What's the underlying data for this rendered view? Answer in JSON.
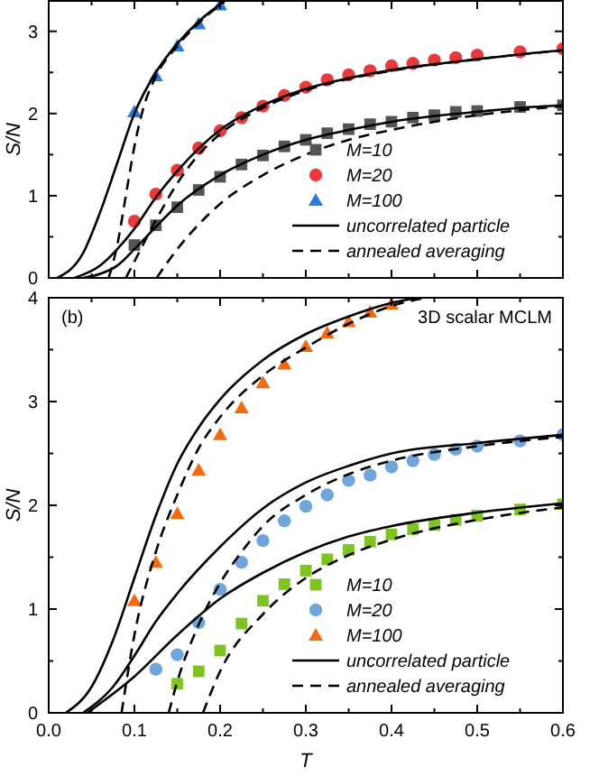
{
  "chart_data": [
    {
      "type": "scatter",
      "ylabel": "S/N",
      "xlim": [
        0,
        0.6
      ],
      "ylim": [
        0,
        3.37
      ],
      "tick_labels": "y",
      "legend": "bottom right",
      "xticks": [
        {
          "value": 0,
          "label": null
        },
        {
          "value": 0.05,
          "label": null
        },
        {
          "value": 0.1,
          "label": null
        },
        {
          "value": 0.15,
          "label": null
        },
        {
          "value": 0.2,
          "label": null
        },
        {
          "value": 0.25,
          "label": null
        },
        {
          "value": 0.3,
          "label": null
        },
        {
          "value": 0.35,
          "label": null
        },
        {
          "value": 0.4,
          "label": null
        },
        {
          "value": 0.45,
          "label": null
        },
        {
          "value": 0.5,
          "label": null
        },
        {
          "value": 0.55,
          "label": null
        },
        {
          "value": 0.6,
          "label": null
        }
      ],
      "yticks": [
        0,
        {
          "value": 0.5,
          "label": null
        },
        1,
        {
          "value": 1.5,
          "label": null
        },
        2,
        {
          "value": 2.5,
          "label": null
        },
        3
      ],
      "series": [
        {
          "name": "M=10",
          "type": "scatter",
          "marker": "square",
          "color": "#555555",
          "x": [
            0.1,
            0.125,
            0.15,
            0.175,
            0.2,
            0.225,
            0.25,
            0.275,
            0.3,
            0.325,
            0.35,
            0.375,
            0.4,
            0.425,
            0.45,
            0.475,
            0.5,
            0.55,
            0.6
          ],
          "values": [
            0.4,
            0.64,
            0.86,
            1.07,
            1.23,
            1.38,
            1.49,
            1.6,
            1.68,
            1.76,
            1.81,
            1.87,
            1.9,
            1.95,
            1.98,
            2.02,
            2.03,
            2.08,
            2.1
          ]
        },
        {
          "name": "M=20",
          "type": "scatter",
          "marker": "circle",
          "color": "#e8393c",
          "x": [
            0.1,
            0.125,
            0.15,
            0.175,
            0.2,
            0.225,
            0.25,
            0.275,
            0.3,
            0.325,
            0.35,
            0.375,
            0.4,
            0.425,
            0.45,
            0.475,
            0.5,
            0.55,
            0.6
          ],
          "values": [
            0.69,
            1.02,
            1.31,
            1.58,
            1.79,
            1.95,
            2.09,
            2.22,
            2.32,
            2.41,
            2.47,
            2.52,
            2.58,
            2.61,
            2.65,
            2.68,
            2.71,
            2.75,
            2.79
          ]
        },
        {
          "name": "M=100",
          "type": "scatter",
          "marker": "triangle",
          "color": "#2a7ae2",
          "x": [
            0.1,
            0.125,
            0.15,
            0.175,
            0.2
          ],
          "values": [
            2.02,
            2.46,
            2.82,
            3.09,
            3.32
          ]
        },
        {
          "name": "uncorrelated particle",
          "type": "line",
          "line_style": "solid",
          "color": "#000000",
          "x": [
            0.04,
            0.06,
            0.08,
            0.1,
            0.125,
            0.15,
            0.2,
            0.25,
            0.3,
            0.35,
            0.4,
            0.45,
            0.5,
            0.55,
            0.6
          ],
          "values": [
            0,
            0.05,
            0.15,
            0.35,
            0.62,
            0.88,
            1.25,
            1.5,
            1.68,
            1.8,
            1.9,
            1.97,
            2.02,
            2.07,
            2.1
          ]
        },
        {
          "type": "line",
          "line_style": "solid",
          "color": "#000000",
          "x": [
            0.03,
            0.06,
            0.08,
            0.1,
            0.125,
            0.15,
            0.2,
            0.25,
            0.3,
            0.35,
            0.4,
            0.45,
            0.5,
            0.55,
            0.6
          ],
          "values": [
            0,
            0.15,
            0.35,
            0.6,
            0.98,
            1.3,
            1.8,
            2.1,
            2.3,
            2.43,
            2.53,
            2.6,
            2.66,
            2.72,
            2.77
          ]
        },
        {
          "type": "line",
          "line_style": "solid",
          "color": "#000000",
          "x": [
            0.01,
            0.04,
            0.06,
            0.08,
            0.1,
            0.125,
            0.15,
            0.175,
            0.2,
            0.205
          ],
          "values": [
            0,
            0.3,
            0.8,
            1.4,
            2.0,
            2.5,
            2.85,
            3.12,
            3.33,
            3.37
          ]
        },
        {
          "name": "annealed averaging",
          "type": "line",
          "line_style": "dashed",
          "color": "#000000",
          "x": [
            0.126,
            0.15,
            0.175,
            0.2,
            0.25,
            0.3,
            0.35,
            0.4,
            0.45,
            0.5,
            0.55,
            0.6
          ],
          "values": [
            0,
            0.35,
            0.65,
            0.9,
            1.25,
            1.5,
            1.68,
            1.8,
            1.9,
            1.98,
            2.04,
            2.09
          ]
        },
        {
          "type": "line",
          "line_style": "dashed",
          "color": "#000000",
          "x": [
            0.09,
            0.1,
            0.125,
            0.15,
            0.175,
            0.2,
            0.25,
            0.3,
            0.4,
            0.5,
            0.6
          ],
          "values": [
            0,
            0.2,
            0.7,
            1.15,
            1.5,
            1.75,
            2.07,
            2.28,
            2.52,
            2.66,
            2.77
          ]
        },
        {
          "type": "line",
          "line_style": "dashed",
          "color": "#000000",
          "x": [
            0.07,
            0.08,
            0.09,
            0.1,
            0.11,
            0.125,
            0.15,
            0.175,
            0.2,
            0.205
          ],
          "values": [
            0,
            0.4,
            1.0,
            1.6,
            2.05,
            2.45,
            2.82,
            3.1,
            3.32,
            3.36
          ]
        }
      ]
    },
    {
      "type": "scatter",
      "xlabel": "T",
      "ylabel": "S/N",
      "xlim": [
        0,
        0.6
      ],
      "ylim": [
        0,
        4
      ],
      "legend": "bottom right",
      "annotations": [
        "(b)",
        "3D scalar MCLM"
      ],
      "xticks": [
        {
          "value": 0,
          "label": "0.0"
        },
        {
          "value": 0.05,
          "label": null
        },
        0.1,
        {
          "value": 0.15,
          "label": null
        },
        0.2,
        {
          "value": 0.25,
          "label": null
        },
        0.3,
        {
          "value": 0.35,
          "label": null
        },
        0.4,
        {
          "value": 0.45,
          "label": null
        },
        0.5,
        {
          "value": 0.55,
          "label": null
        },
        0.6
      ],
      "yticks": [
        0,
        {
          "value": 0.5,
          "label": null
        },
        1,
        {
          "value": 1.5,
          "label": null
        },
        2,
        {
          "value": 2.5,
          "label": null
        },
        3,
        {
          "value": 3.5,
          "label": null
        },
        4
      ],
      "series": [
        {
          "name": "M=10",
          "type": "scatter",
          "marker": "square",
          "color": "#7ec321",
          "x": [
            0.15,
            0.175,
            0.2,
            0.225,
            0.25,
            0.275,
            0.3,
            0.325,
            0.35,
            0.375,
            0.4,
            0.425,
            0.45,
            0.475,
            0.5,
            0.55,
            0.6
          ],
          "values": [
            0.28,
            0.4,
            0.6,
            0.86,
            1.08,
            1.24,
            1.37,
            1.48,
            1.57,
            1.65,
            1.72,
            1.77,
            1.81,
            1.86,
            1.9,
            1.96,
            2.01
          ]
        },
        {
          "name": "M=20",
          "type": "scatter",
          "marker": "circle",
          "color": "#6fa5d8",
          "x": [
            0.125,
            0.15,
            0.175,
            0.2,
            0.225,
            0.25,
            0.275,
            0.3,
            0.325,
            0.35,
            0.375,
            0.4,
            0.425,
            0.45,
            0.475,
            0.5,
            0.55,
            0.6
          ],
          "values": [
            0.42,
            0.56,
            0.87,
            1.19,
            1.45,
            1.66,
            1.85,
            1.99,
            2.1,
            2.24,
            2.29,
            2.37,
            2.43,
            2.49,
            2.54,
            2.57,
            2.62,
            2.68
          ]
        },
        {
          "name": "M=100",
          "type": "scatter",
          "marker": "triangle",
          "color": "#f26b13",
          "x": [
            0.1,
            0.125,
            0.15,
            0.175,
            0.2,
            0.225,
            0.25,
            0.275,
            0.3,
            0.325,
            0.35,
            0.375,
            0.4
          ],
          "values": [
            1.08,
            1.45,
            1.92,
            2.34,
            2.68,
            2.94,
            3.18,
            3.36,
            3.53,
            3.66,
            3.77,
            3.86,
            3.94
          ]
        },
        {
          "name": "uncorrelated particle",
          "type": "line",
          "line_style": "solid",
          "color": "#000000",
          "x": [
            0.045,
            0.1,
            0.15,
            0.2,
            0.25,
            0.3,
            0.35,
            0.4,
            0.5,
            0.6
          ],
          "values": [
            0,
            0.35,
            0.75,
            1.1,
            1.35,
            1.55,
            1.7,
            1.8,
            1.93,
            2.02
          ]
        },
        {
          "type": "line",
          "line_style": "solid",
          "color": "#000000",
          "x": [
            0.04,
            0.075,
            0.1,
            0.125,
            0.15,
            0.2,
            0.25,
            0.3,
            0.35,
            0.4,
            0.5,
            0.6
          ],
          "values": [
            0,
            0.25,
            0.55,
            0.88,
            1.15,
            1.6,
            1.97,
            2.22,
            2.38,
            2.5,
            2.6,
            2.68
          ]
        },
        {
          "type": "line",
          "line_style": "solid",
          "color": "#000000",
          "x": [
            0.02,
            0.05,
            0.075,
            0.1,
            0.125,
            0.15,
            0.175,
            0.2,
            0.25,
            0.3,
            0.35,
            0.4,
            0.43
          ],
          "values": [
            0,
            0.25,
            0.7,
            1.3,
            1.9,
            2.4,
            2.75,
            3.02,
            3.4,
            3.65,
            3.82,
            3.95,
            4.0
          ]
        },
        {
          "name": "annealed averaging",
          "type": "line",
          "line_style": "dashed",
          "color": "#000000",
          "x": [
            0.18,
            0.2,
            0.25,
            0.3,
            0.35,
            0.4,
            0.5,
            0.6
          ],
          "values": [
            0,
            0.4,
            0.95,
            1.3,
            1.52,
            1.67,
            1.86,
            1.98
          ]
        },
        {
          "type": "line",
          "line_style": "dashed",
          "color": "#000000",
          "x": [
            0.14,
            0.15,
            0.175,
            0.2,
            0.225,
            0.25,
            0.3,
            0.35,
            0.4,
            0.5,
            0.6
          ],
          "values": [
            0,
            0.3,
            0.85,
            1.25,
            1.55,
            1.8,
            2.1,
            2.3,
            2.43,
            2.57,
            2.66
          ]
        },
        {
          "type": "line",
          "line_style": "dashed",
          "color": "#000000",
          "x": [
            0.085,
            0.1,
            0.125,
            0.15,
            0.175,
            0.2,
            0.25,
            0.3,
            0.35,
            0.4,
            0.44
          ],
          "values": [
            0,
            0.75,
            1.55,
            2.1,
            2.55,
            2.85,
            3.25,
            3.52,
            3.75,
            3.92,
            4.0
          ]
        }
      ]
    }
  ]
}
